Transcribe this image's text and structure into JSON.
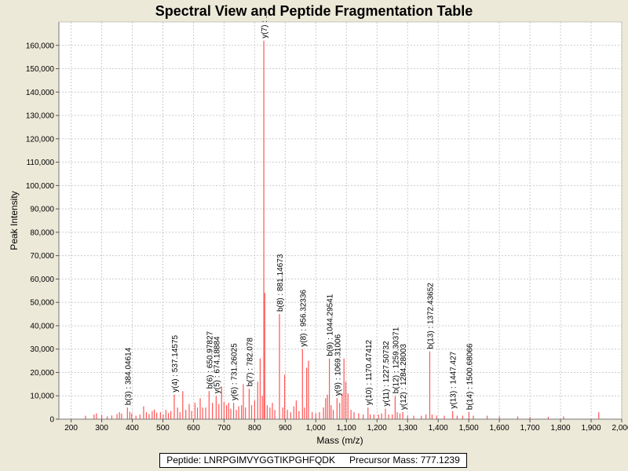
{
  "chart_data": {
    "type": "bar",
    "title": "Spectral View and Peptide Fragmentation Table",
    "xlabel": "Mass (m/z)",
    "ylabel": "Peak Intensity",
    "xlim": [
      160,
      2000
    ],
    "ylim": [
      0,
      170000
    ],
    "xticks": [
      200,
      300,
      400,
      500,
      600,
      700,
      800,
      900,
      1000,
      1100,
      1200,
      1300,
      1400,
      1500,
      1600,
      1700,
      1800,
      1900,
      2000
    ],
    "xtick_labels": [
      "200",
      "300",
      "400",
      "500",
      "600",
      "700",
      "800",
      "900",
      "1,000",
      "1,100",
      "1,200",
      "1,300",
      "1,400",
      "1,500",
      "1,600",
      "1,700",
      "1,800",
      "1,900",
      "2,000"
    ],
    "yticks": [
      0,
      10000,
      20000,
      30000,
      40000,
      50000,
      60000,
      70000,
      80000,
      90000,
      100000,
      110000,
      120000,
      130000,
      140000,
      150000,
      160000
    ],
    "ytick_labels": [
      "0",
      "10,000",
      "20,000",
      "30,000",
      "40,000",
      "50,000",
      "60,000",
      "70,000",
      "80,000",
      "90,000",
      "100,000",
      "110,000",
      "120,000",
      "130,000",
      "140,000",
      "150,000",
      "160,000"
    ],
    "grid": true,
    "bar_color": "#ff5555",
    "peaks": [
      {
        "mz": 247,
        "i": 1500
      },
      {
        "mz": 275,
        "i": 2000
      },
      {
        "mz": 283,
        "i": 2500
      },
      {
        "mz": 300,
        "i": 1800
      },
      {
        "mz": 318,
        "i": 1200
      },
      {
        "mz": 333,
        "i": 1600
      },
      {
        "mz": 350,
        "i": 2200
      },
      {
        "mz": 358,
        "i": 3000
      },
      {
        "mz": 365,
        "i": 2400
      },
      {
        "mz": 384.04614,
        "i": 5000
      },
      {
        "mz": 392,
        "i": 3200
      },
      {
        "mz": 398,
        "i": 2500
      },
      {
        "mz": 412,
        "i": 1500
      },
      {
        "mz": 425,
        "i": 2000
      },
      {
        "mz": 437,
        "i": 5500
      },
      {
        "mz": 446,
        "i": 3000
      },
      {
        "mz": 455,
        "i": 2200
      },
      {
        "mz": 465,
        "i": 3500
      },
      {
        "mz": 472,
        "i": 4200
      },
      {
        "mz": 480,
        "i": 2800
      },
      {
        "mz": 492,
        "i": 3000
      },
      {
        "mz": 501,
        "i": 2000
      },
      {
        "mz": 510,
        "i": 4000
      },
      {
        "mz": 518,
        "i": 2600
      },
      {
        "mz": 526,
        "i": 3500
      },
      {
        "mz": 537.14575,
        "i": 10500
      },
      {
        "mz": 548,
        "i": 5000
      },
      {
        "mz": 556,
        "i": 3000
      },
      {
        "mz": 565,
        "i": 12000
      },
      {
        "mz": 575,
        "i": 4000
      },
      {
        "mz": 586,
        "i": 6500
      },
      {
        "mz": 594,
        "i": 3500
      },
      {
        "mz": 605,
        "i": 7000
      },
      {
        "mz": 613,
        "i": 5000
      },
      {
        "mz": 622,
        "i": 9000
      },
      {
        "mz": 630,
        "i": 5000
      },
      {
        "mz": 640,
        "i": 5000
      },
      {
        "mz": 650.97827,
        "i": 12000
      },
      {
        "mz": 662,
        "i": 7000
      },
      {
        "mz": 674.18884,
        "i": 10000
      },
      {
        "mz": 683,
        "i": 6500
      },
      {
        "mz": 692,
        "i": 14000
      },
      {
        "mz": 700,
        "i": 7500
      },
      {
        "mz": 708,
        "i": 6000
      },
      {
        "mz": 715,
        "i": 7000
      },
      {
        "mz": 722,
        "i": 4500
      },
      {
        "mz": 731.26025,
        "i": 7000
      },
      {
        "mz": 740,
        "i": 4000
      },
      {
        "mz": 748,
        "i": 5500
      },
      {
        "mz": 757,
        "i": 6000
      },
      {
        "mz": 763,
        "i": 15000
      },
      {
        "mz": 770,
        "i": 5000
      },
      {
        "mz": 782.078,
        "i": 13000
      },
      {
        "mz": 790,
        "i": 6000
      },
      {
        "mz": 800,
        "i": 8000
      },
      {
        "mz": 810,
        "i": 16000
      },
      {
        "mz": 818,
        "i": 26000
      },
      {
        "mz": 825,
        "i": 10000
      },
      {
        "mz": 830,
        "i": 162000
      },
      {
        "mz": 833,
        "i": 54000
      },
      {
        "mz": 841,
        "i": 6000
      },
      {
        "mz": 850,
        "i": 5000
      },
      {
        "mz": 858,
        "i": 7000
      },
      {
        "mz": 866,
        "i": 4000
      },
      {
        "mz": 881.14673,
        "i": 45000
      },
      {
        "mz": 892,
        "i": 5000
      },
      {
        "mz": 898,
        "i": 19000
      },
      {
        "mz": 907,
        "i": 4000
      },
      {
        "mz": 918,
        "i": 3000
      },
      {
        "mz": 928,
        "i": 5500
      },
      {
        "mz": 936,
        "i": 8000
      },
      {
        "mz": 945,
        "i": 3500
      },
      {
        "mz": 956.32336,
        "i": 30000
      },
      {
        "mz": 963,
        "i": 5000
      },
      {
        "mz": 970,
        "i": 22000
      },
      {
        "mz": 976,
        "i": 25000
      },
      {
        "mz": 988,
        "i": 3000
      },
      {
        "mz": 1000,
        "i": 2500
      },
      {
        "mz": 1012,
        "i": 3000
      },
      {
        "mz": 1025,
        "i": 5000
      },
      {
        "mz": 1032,
        "i": 9000
      },
      {
        "mz": 1038,
        "i": 10500
      },
      {
        "mz": 1044.29541,
        "i": 26000
      },
      {
        "mz": 1050,
        "i": 6000
      },
      {
        "mz": 1057,
        "i": 4000
      },
      {
        "mz": 1069.31006,
        "i": 9000
      },
      {
        "mz": 1078,
        "i": 7000
      },
      {
        "mz": 1086,
        "i": 11000
      },
      {
        "mz": 1092,
        "i": 26000
      },
      {
        "mz": 1098,
        "i": 16000
      },
      {
        "mz": 1105,
        "i": 11000
      },
      {
        "mz": 1115,
        "i": 4000
      },
      {
        "mz": 1125,
        "i": 3000
      },
      {
        "mz": 1140,
        "i": 2500
      },
      {
        "mz": 1155,
        "i": 2000
      },
      {
        "mz": 1170.47412,
        "i": 5000
      },
      {
        "mz": 1178,
        "i": 2000
      },
      {
        "mz": 1190,
        "i": 2000
      },
      {
        "mz": 1205,
        "i": 2000
      },
      {
        "mz": 1215,
        "i": 2500
      },
      {
        "mz": 1227.50732,
        "i": 4500
      },
      {
        "mz": 1238,
        "i": 2000
      },
      {
        "mz": 1250,
        "i": 2000
      },
      {
        "mz": 1259.30371,
        "i": 10000
      },
      {
        "mz": 1266,
        "i": 3000
      },
      {
        "mz": 1275,
        "i": 2500
      },
      {
        "mz": 1284.28003,
        "i": 3000
      },
      {
        "mz": 1300,
        "i": 1500
      },
      {
        "mz": 1320,
        "i": 1500
      },
      {
        "mz": 1345,
        "i": 1500
      },
      {
        "mz": 1360,
        "i": 2000
      },
      {
        "mz": 1372.43652,
        "i": 29000
      },
      {
        "mz": 1380,
        "i": 2000
      },
      {
        "mz": 1395,
        "i": 1500
      },
      {
        "mz": 1420,
        "i": 1500
      },
      {
        "mz": 1447.427,
        "i": 3500
      },
      {
        "mz": 1462,
        "i": 1500
      },
      {
        "mz": 1480,
        "i": 1500
      },
      {
        "mz": 1500.68066,
        "i": 3000
      },
      {
        "mz": 1515,
        "i": 1500
      },
      {
        "mz": 1560,
        "i": 1500
      },
      {
        "mz": 1600,
        "i": 1200
      },
      {
        "mz": 1660,
        "i": 1200
      },
      {
        "mz": 1700,
        "i": 1000
      },
      {
        "mz": 1760,
        "i": 1000
      },
      {
        "mz": 1810,
        "i": 1200
      },
      {
        "mz": 1925,
        "i": 3000
      }
    ],
    "annotations": [
      {
        "mz": 384.04614,
        "i": 5000,
        "label": "b(3) : 384.04614"
      },
      {
        "mz": 537.14575,
        "i": 10500,
        "label": "y(4) : 537.14575"
      },
      {
        "mz": 650.97827,
        "i": 12000,
        "label": "b(6) : 650.97827"
      },
      {
        "mz": 674.18884,
        "i": 10000,
        "label": "y(5) : 674.18884"
      },
      {
        "mz": 731.26025,
        "i": 7000,
        "label": "y(6) : 731.26025"
      },
      {
        "mz": 782.078,
        "i": 13000,
        "label": "b(7) : 782.078"
      },
      {
        "mz": 830,
        "i": 162000,
        "label": "y(7) : ..."
      },
      {
        "mz": 881.14673,
        "i": 45000,
        "label": "b(8) : 881.14673"
      },
      {
        "mz": 956.32336,
        "i": 30000,
        "label": "y(8) : 956.32336"
      },
      {
        "mz": 1044.29541,
        "i": 26000,
        "label": "b(9) : 1044.29541"
      },
      {
        "mz": 1069.31006,
        "i": 9000,
        "label": "y(9) : 1069.31006"
      },
      {
        "mz": 1170.47412,
        "i": 5000,
        "label": "y(10) : 1170.47412"
      },
      {
        "mz": 1227.50732,
        "i": 4500,
        "label": "y(11) : 1227.50732"
      },
      {
        "mz": 1259.30371,
        "i": 10000,
        "label": "b(12) : 1259.30371"
      },
      {
        "mz": 1284.28003,
        "i": 3000,
        "label": "y(12) : 1284.28003"
      },
      {
        "mz": 1372.43652,
        "i": 29000,
        "label": "b(13) : 1372.43652"
      },
      {
        "mz": 1447.427,
        "i": 3500,
        "label": "y(13) : 1447.427"
      },
      {
        "mz": 1500.68066,
        "i": 3000,
        "label": "b(14) : 1500.68066"
      }
    ]
  },
  "footer": {
    "peptide_label": "Peptide:",
    "peptide": "LNRPGIMVYGGTIKPGHFQDK",
    "precursor_label": "Precursor Mass:",
    "precursor_mass": "777.1239"
  }
}
